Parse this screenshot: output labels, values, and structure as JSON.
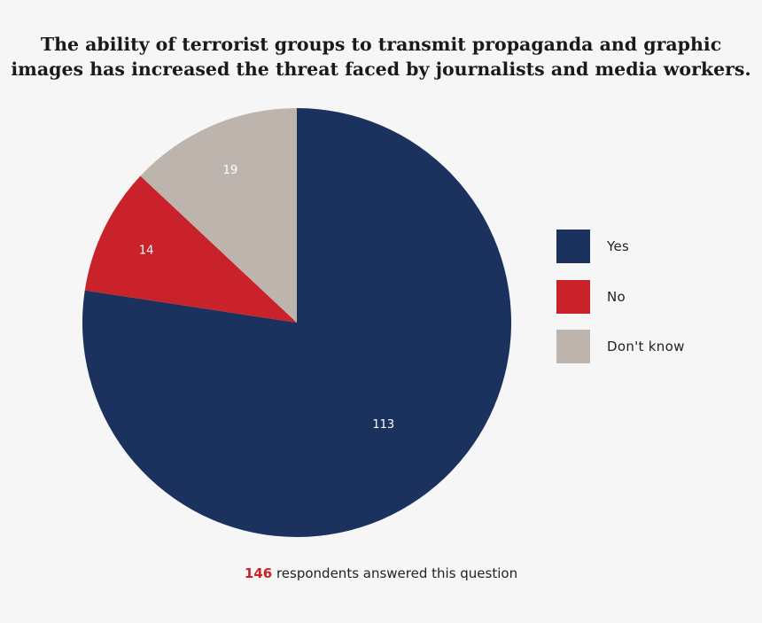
{
  "chart_data": {
    "type": "pie",
    "title_lines": [
      "The ability of terrorist groups to transmit propaganda and graphic",
      "images has increased the threat faced by journalists and media workers."
    ],
    "categories": [
      "Yes",
      "No",
      "Don't know"
    ],
    "values": [
      113,
      14,
      19
    ],
    "colors": [
      "#1b325e",
      "#c9222a",
      "#bdb5ad"
    ],
    "start_angle": "12 o'clock",
    "direction": "clockwise",
    "legend_placement": "right",
    "data_labels": [
      "113",
      "14",
      "19"
    ]
  },
  "footer": {
    "count": "146",
    "text": " respondents answered this question"
  }
}
